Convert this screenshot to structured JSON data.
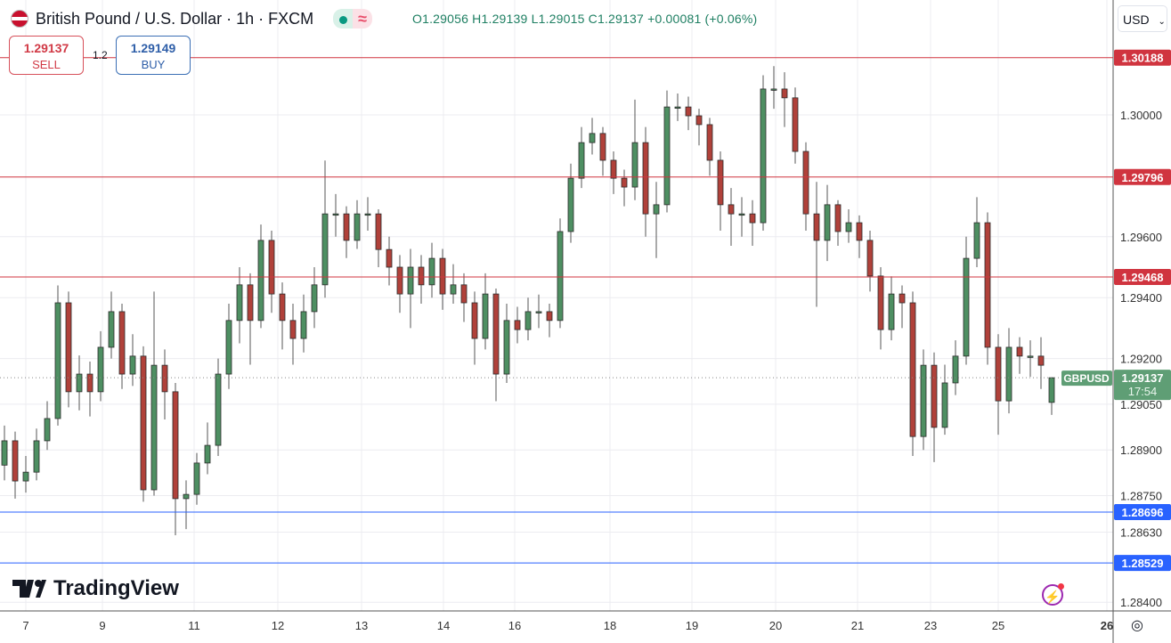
{
  "header": {
    "title": "British Pound / U.S. Dollar · 1h · FXCM",
    "ohlc": "O1.29056 H1.29139 L1.29015 C1.29137 +0.00081 (+0.06%)",
    "market_status_icon": "green-dot",
    "replay_icon": "approx-wave"
  },
  "trade": {
    "sell_price": "1.29137",
    "sell_label": "SELL",
    "spread": "1.2",
    "buy_price": "1.29149",
    "buy_label": "BUY"
  },
  "currency": "USD",
  "logo": "TradingView",
  "chart_data": {
    "type": "candlestick",
    "symbol": "GBPUSD",
    "timeframe": "1h",
    "ylim": [
      1.2837,
      1.3035
    ],
    "y_ticks": [
      "1.30000",
      "1.29600",
      "1.29400",
      "1.29200",
      "1.29050",
      "1.28900",
      "1.28750",
      "1.28630",
      "1.28400"
    ],
    "x_ticks": [
      "7",
      "9",
      "11",
      "12",
      "13",
      "14",
      "16",
      "18",
      "19",
      "20",
      "21",
      "23",
      "25",
      "26"
    ],
    "grid": true,
    "colors": {
      "up": "#4e8f62",
      "down": "#b0413a",
      "resistance": "#d0343f",
      "support": "#2962ff",
      "last": "#5f9e75"
    },
    "resistance_levels": [
      "1.30188",
      "1.29796",
      "1.29468"
    ],
    "support_levels": [
      "1.28696",
      "1.28529"
    ],
    "last_price": "1.29137",
    "countdown": "17:54",
    "candles": [
      [
        1.2885,
        1.2898,
        1.288,
        1.2893
      ],
      [
        1.2893,
        1.2896,
        1.2874,
        1.28798
      ],
      [
        1.28798,
        1.2888,
        1.2876,
        1.28827
      ],
      [
        1.28827,
        1.2897,
        1.288,
        1.2893
      ],
      [
        1.2893,
        1.2906,
        1.289,
        1.29003
      ],
      [
        1.29003,
        1.2944,
        1.2898,
        1.29383
      ],
      [
        1.29383,
        1.2942,
        1.2904,
        1.29091
      ],
      [
        1.29091,
        1.2921,
        1.2903,
        1.29149
      ],
      [
        1.29149,
        1.2919,
        1.2901,
        1.29091
      ],
      [
        1.29091,
        1.2929,
        1.2906,
        1.29237
      ],
      [
        1.29237,
        1.2942,
        1.292,
        1.29354
      ],
      [
        1.29354,
        1.2938,
        1.291,
        1.29149
      ],
      [
        1.29149,
        1.2928,
        1.2911,
        1.29208
      ],
      [
        1.29208,
        1.2924,
        1.2873,
        1.28769
      ],
      [
        1.28769,
        1.2942,
        1.2875,
        1.29178
      ],
      [
        1.29178,
        1.2923,
        1.29,
        1.29091
      ],
      [
        1.29091,
        1.2912,
        1.2862,
        1.2874
      ],
      [
        1.2874,
        1.288,
        1.2864,
        1.28754
      ],
      [
        1.28754,
        1.2889,
        1.2872,
        1.28857
      ],
      [
        1.28857,
        1.2899,
        1.2882,
        1.28915
      ],
      [
        1.28915,
        1.292,
        1.2888,
        1.29149
      ],
      [
        1.29149,
        1.2938,
        1.291,
        1.29325
      ],
      [
        1.29325,
        1.295,
        1.2925,
        1.29442
      ],
      [
        1.29442,
        1.2948,
        1.2918,
        1.29325
      ],
      [
        1.29325,
        1.2964,
        1.293,
        1.29588
      ],
      [
        1.29588,
        1.2962,
        1.2935,
        1.29412
      ],
      [
        1.29412,
        1.2945,
        1.2923,
        1.29325
      ],
      [
        1.29325,
        1.2938,
        1.2918,
        1.29266
      ],
      [
        1.29266,
        1.2941,
        1.2922,
        1.29354
      ],
      [
        1.29354,
        1.295,
        1.293,
        1.29442
      ],
      [
        1.29442,
        1.2985,
        1.294,
        1.29675
      ],
      [
        1.29675,
        1.2974,
        1.296,
        1.29675
      ],
      [
        1.29675,
        1.297,
        1.2953,
        1.29588
      ],
      [
        1.29588,
        1.2972,
        1.2956,
        1.29675
      ],
      [
        1.29675,
        1.2973,
        1.2962,
        1.29675
      ],
      [
        1.29675,
        1.2969,
        1.295,
        1.29558
      ],
      [
        1.29558,
        1.296,
        1.2944,
        1.295
      ],
      [
        1.295,
        1.2954,
        1.2935,
        1.29412
      ],
      [
        1.29412,
        1.2956,
        1.293,
        1.295
      ],
      [
        1.295,
        1.2954,
        1.2938,
        1.29442
      ],
      [
        1.29442,
        1.2958,
        1.294,
        1.29529
      ],
      [
        1.29529,
        1.2956,
        1.2936,
        1.29412
      ],
      [
        1.29412,
        1.2951,
        1.2938,
        1.29442
      ],
      [
        1.29442,
        1.2948,
        1.2932,
        1.29383
      ],
      [
        1.29383,
        1.2942,
        1.2918,
        1.29266
      ],
      [
        1.29266,
        1.2948,
        1.2923,
        1.29412
      ],
      [
        1.29412,
        1.2943,
        1.2906,
        1.29149
      ],
      [
        1.29149,
        1.2938,
        1.2912,
        1.29325
      ],
      [
        1.29325,
        1.2937,
        1.2925,
        1.29295
      ],
      [
        1.29295,
        1.294,
        1.2926,
        1.29354
      ],
      [
        1.29354,
        1.2941,
        1.293,
        1.29354
      ],
      [
        1.29354,
        1.2938,
        1.2927,
        1.29325
      ],
      [
        1.29325,
        1.2966,
        1.293,
        1.29617
      ],
      [
        1.29617,
        1.2984,
        1.2958,
        1.29792
      ],
      [
        1.29792,
        1.2996,
        1.2976,
        1.29909
      ],
      [
        1.29909,
        1.2999,
        1.2987,
        1.29939
      ],
      [
        1.29939,
        1.2996,
        1.298,
        1.29851
      ],
      [
        1.29851,
        1.2988,
        1.2974,
        1.29792
      ],
      [
        1.29792,
        1.2982,
        1.297,
        1.29763
      ],
      [
        1.29763,
        1.3005,
        1.2972,
        1.29909
      ],
      [
        1.29909,
        1.2996,
        1.296,
        1.29675
      ],
      [
        1.29675,
        1.2978,
        1.2953,
        1.29705
      ],
      [
        1.29705,
        1.3008,
        1.2968,
        1.30026
      ],
      [
        1.30026,
        1.3007,
        1.2998,
        1.30026
      ],
      [
        1.30026,
        1.3006,
        1.2995,
        1.29997
      ],
      [
        1.29997,
        1.3002,
        1.299,
        1.29968
      ],
      [
        1.29968,
        1.2999,
        1.298,
        1.29851
      ],
      [
        1.29851,
        1.2988,
        1.2962,
        1.29705
      ],
      [
        1.29705,
        1.2976,
        1.2957,
        1.29675
      ],
      [
        1.29675,
        1.2973,
        1.296,
        1.29675
      ],
      [
        1.29675,
        1.2972,
        1.2957,
        1.29646
      ],
      [
        1.29646,
        1.3013,
        1.2962,
        1.30085
      ],
      [
        1.30085,
        1.3016,
        1.3002,
        1.30085
      ],
      [
        1.30085,
        1.3014,
        1.2996,
        1.30056
      ],
      [
        1.30056,
        1.3009,
        1.2984,
        1.2988
      ],
      [
        1.2988,
        1.2991,
        1.2962,
        1.29675
      ],
      [
        1.29675,
        1.2978,
        1.2937,
        1.29588
      ],
      [
        1.29588,
        1.2977,
        1.2952,
        1.29705
      ],
      [
        1.29705,
        1.2972,
        1.2957,
        1.29617
      ],
      [
        1.29617,
        1.2969,
        1.2958,
        1.29646
      ],
      [
        1.29646,
        1.2967,
        1.2953,
        1.29588
      ],
      [
        1.29588,
        1.2962,
        1.2942,
        1.29471
      ],
      [
        1.29471,
        1.295,
        1.2923,
        1.29295
      ],
      [
        1.29295,
        1.2947,
        1.2926,
        1.29412
      ],
      [
        1.29412,
        1.2944,
        1.293,
        1.29383
      ],
      [
        1.29383,
        1.2942,
        1.2888,
        1.28944
      ],
      [
        1.28944,
        1.2923,
        1.289,
        1.29178
      ],
      [
        1.29178,
        1.2922,
        1.2886,
        1.28974
      ],
      [
        1.28974,
        1.2918,
        1.2895,
        1.2912
      ],
      [
        1.2912,
        1.2926,
        1.2908,
        1.29208
      ],
      [
        1.29208,
        1.296,
        1.2918,
        1.29529
      ],
      [
        1.29529,
        1.2973,
        1.295,
        1.29646
      ],
      [
        1.29646,
        1.2968,
        1.2918,
        1.29237
      ],
      [
        1.29237,
        1.2928,
        1.2895,
        1.29061
      ],
      [
        1.29061,
        1.293,
        1.2902,
        1.29237
      ],
      [
        1.29237,
        1.2927,
        1.2915,
        1.29208
      ],
      [
        1.29208,
        1.2926,
        1.2914,
        1.29208
      ],
      [
        1.29208,
        1.2927,
        1.291,
        1.29178
      ],
      [
        1.29056,
        1.29139,
        1.29015,
        1.29137
      ]
    ]
  }
}
